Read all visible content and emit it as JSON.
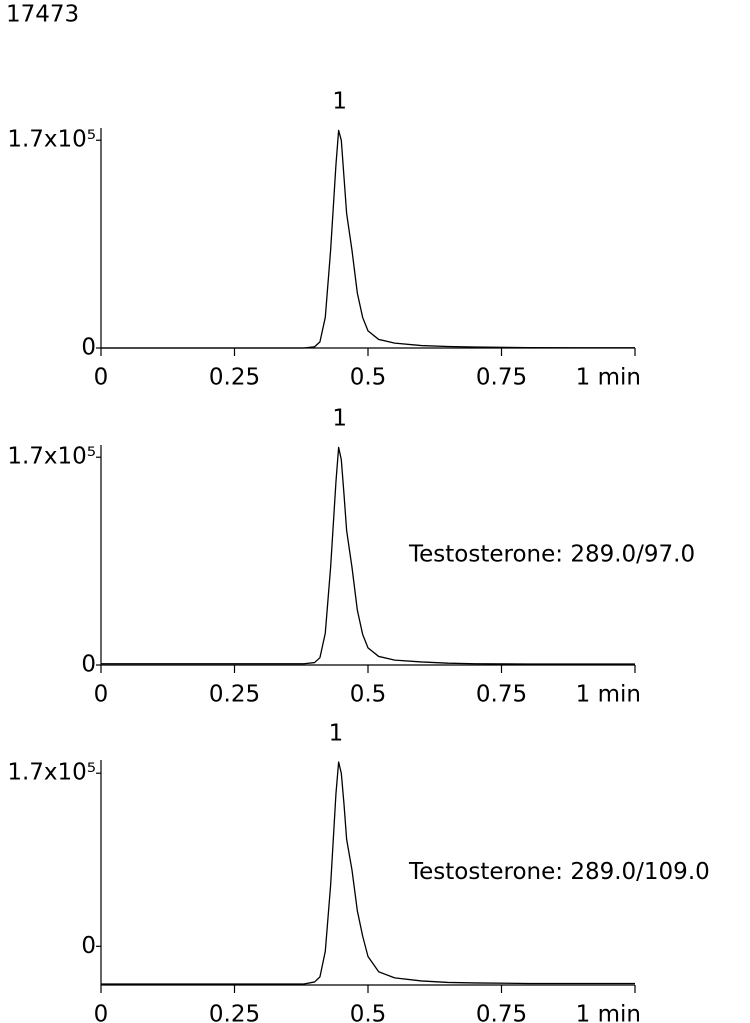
{
  "header": "17473",
  "chart_data": [
    {
      "type": "line",
      "x": [
        0,
        0.1,
        0.2,
        0.3,
        0.38,
        0.4,
        0.41,
        0.42,
        0.43,
        0.44,
        0.445,
        0.45,
        0.455,
        0.46,
        0.47,
        0.48,
        0.49,
        0.5,
        0.52,
        0.55,
        0.6,
        0.65,
        0.7,
        0.8,
        0.9,
        1
      ],
      "series": [
        {
          "color": "#000000",
          "values": [
            0,
            0,
            0,
            0,
            0,
            1000,
            5000,
            25000,
            80000,
            150000,
            178000,
            170000,
            140000,
            110000,
            80000,
            45000,
            25000,
            14000,
            7000,
            4000,
            2000,
            1200,
            800,
            300,
            200,
            200
          ]
        }
      ],
      "xlim": [
        0,
        1
      ],
      "xticks": [
        0,
        0.25,
        0.5,
        0.75,
        {
          "value": 1,
          "label": "1 min"
        }
      ],
      "ylim": [
        0,
        180000
      ],
      "yticks": [
        0,
        {
          "value": 170000,
          "label": "1.7x10⁵"
        }
      ],
      "annotations": [
        {
          "text": "1",
          "x": 0.447
        }
      ]
    },
    {
      "type": "line",
      "x": [
        0,
        0.1,
        0.2,
        0.3,
        0.38,
        0.4,
        0.41,
        0.42,
        0.43,
        0.44,
        0.445,
        0.45,
        0.455,
        0.46,
        0.47,
        0.48,
        0.49,
        0.5,
        0.52,
        0.55,
        0.6,
        0.65,
        0.7,
        0.8,
        0.9,
        1
      ],
      "series": [
        {
          "color": "#000000",
          "values": [
            1000,
            1000,
            1000,
            1000,
            1000,
            2000,
            6000,
            26000,
            80000,
            150000,
            178000,
            168000,
            140000,
            110000,
            80000,
            45000,
            25000,
            14000,
            7000,
            4000,
            2500,
            1500,
            1000,
            800,
            800,
            800
          ]
        }
      ],
      "xlim": [
        0,
        1
      ],
      "xticks": [
        0,
        0.25,
        0.5,
        0.75,
        {
          "value": 1,
          "label": "1 min"
        }
      ],
      "ylim": [
        0,
        180000
      ],
      "yticks": [
        0,
        {
          "value": 170000,
          "label": "1.7x10⁵"
        }
      ],
      "annotations": [
        {
          "text": "1",
          "x": 0.447
        },
        {
          "text": "Testosterone: 289.0/97.0"
        }
      ]
    },
    {
      "type": "line",
      "x": [
        0,
        0.1,
        0.2,
        0.3,
        0.38,
        0.4,
        0.41,
        0.42,
        0.43,
        0.44,
        0.445,
        0.45,
        0.455,
        0.46,
        0.47,
        0.48,
        0.49,
        0.5,
        0.52,
        0.55,
        0.6,
        0.65,
        0.7,
        0.8,
        0.9,
        1
      ],
      "series": [
        {
          "color": "#000000",
          "values": [
            -37000,
            -37000,
            -37000,
            -37000,
            -37000,
            -35000,
            -30000,
            -5000,
            60000,
            150000,
            181000,
            170000,
            140000,
            105000,
            75000,
            35000,
            10000,
            -10000,
            -25000,
            -31000,
            -34000,
            -35500,
            -36000,
            -36500,
            -36500,
            -36500
          ]
        }
      ],
      "xlim": [
        0,
        1
      ],
      "xticks": [
        0,
        0.25,
        0.5,
        0.75,
        {
          "value": 1,
          "label": "1 min"
        }
      ],
      "ylim": [
        -38000,
        183000
      ],
      "yticks": [
        0,
        {
          "value": 170000,
          "label": "1.7x10⁵"
        }
      ],
      "annotations": [
        {
          "text": "1",
          "x": 0.44
        },
        {
          "text": "Testosterone: 289.0/109.0"
        }
      ]
    }
  ]
}
